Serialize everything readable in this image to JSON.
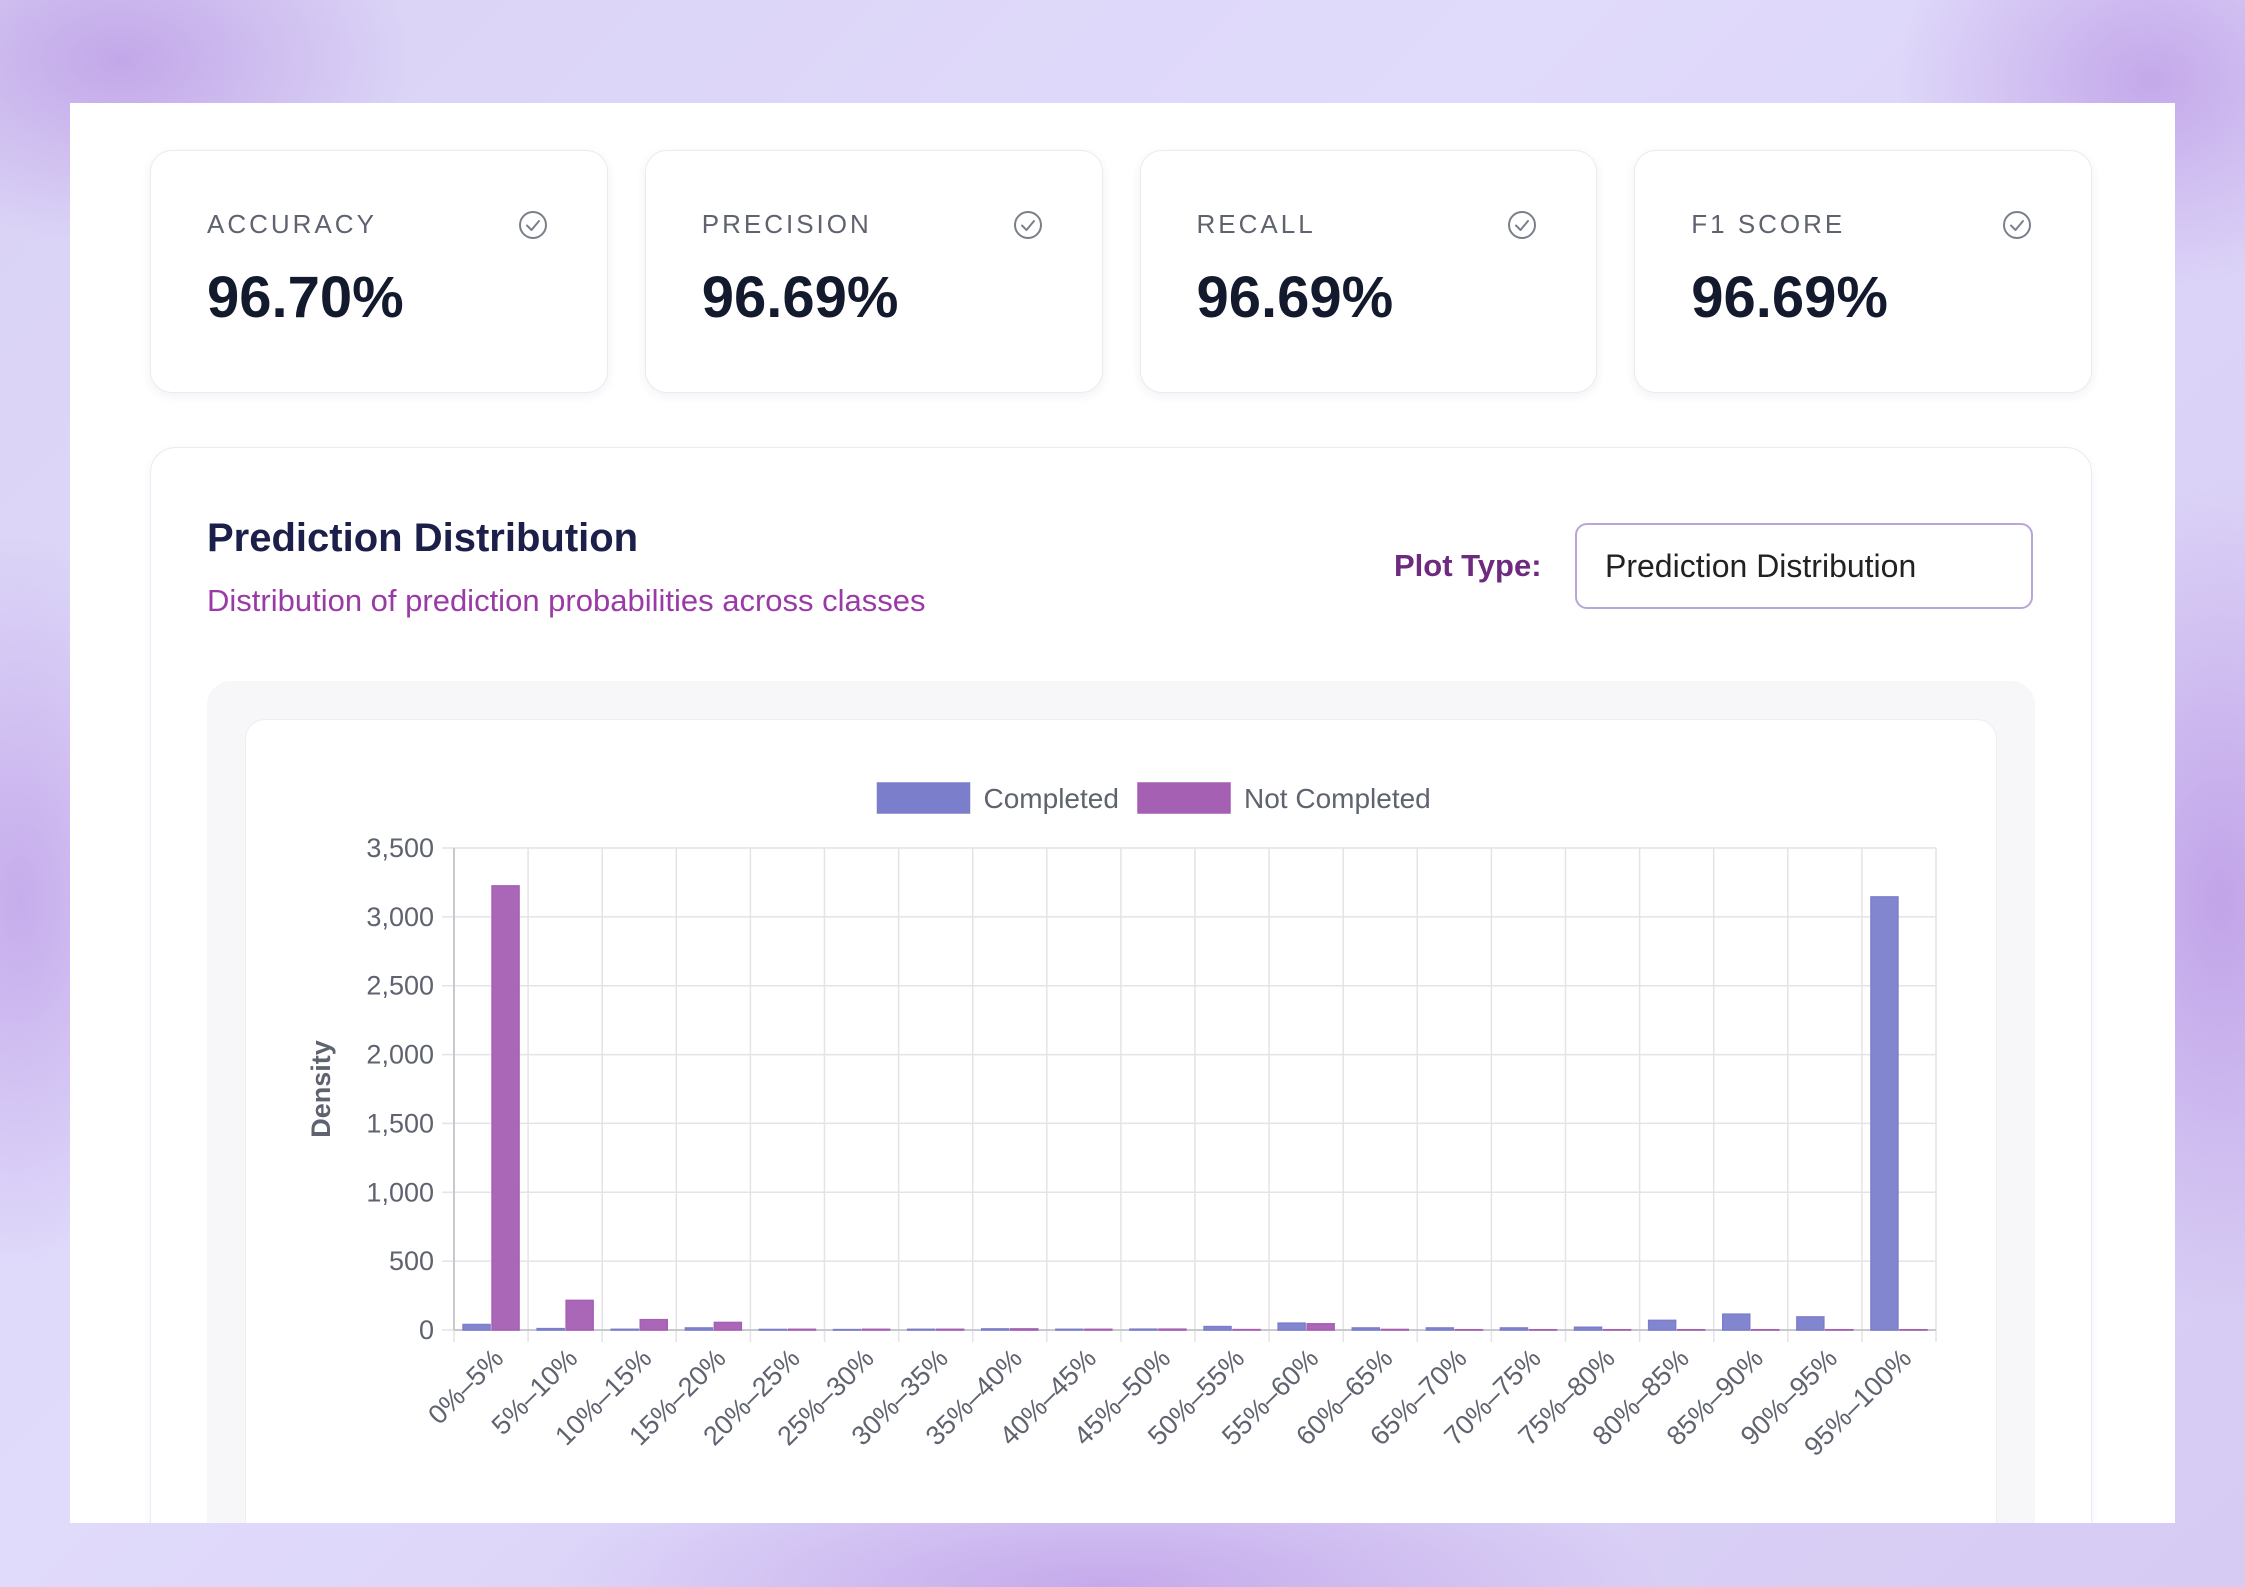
{
  "metrics": [
    {
      "label": "ACCURACY",
      "value": "96.70%",
      "icon": "check-circle-icon"
    },
    {
      "label": "PRECISION",
      "value": "96.69%",
      "icon": "check-circle-icon"
    },
    {
      "label": "RECALL",
      "value": "96.69%",
      "icon": "check-circle-icon"
    },
    {
      "label": "F1 SCORE",
      "value": "96.69%",
      "icon": "check-circle-icon"
    }
  ],
  "panel": {
    "title": "Prediction Distribution",
    "subtitle": "Distribution of prediction probabilities across classes",
    "plot_type_label": "Plot Type:",
    "plot_type_value": "Prediction Distribution"
  },
  "colors": {
    "completed": "#7b7fcb",
    "not_completed": "#a55fb3",
    "grid": "#e3e3e8",
    "axis_text": "#5f6370"
  },
  "chart_data": {
    "type": "bar",
    "title": "",
    "xlabel": "",
    "ylabel": "Density",
    "ylim": [
      0,
      3500
    ],
    "yticks": [
      0,
      500,
      1000,
      1500,
      2000,
      2500,
      3000,
      3500
    ],
    "ytick_labels": [
      "0",
      "500",
      "1,000",
      "1,500",
      "2,000",
      "2,500",
      "3,000",
      "3,500"
    ],
    "grid": true,
    "legend_position": "top-center",
    "categories": [
      "0%–5%",
      "5%–10%",
      "10%–15%",
      "15%–20%",
      "20%–25%",
      "25%–30%",
      "30%–35%",
      "35%–40%",
      "40%–45%",
      "45%–50%",
      "50%–55%",
      "55%–60%",
      "60%–65%",
      "65%–70%",
      "70%–75%",
      "75%–80%",
      "80%–85%",
      "85%–90%",
      "90%–95%",
      "95%–100%"
    ],
    "series": [
      {
        "name": "Completed",
        "color": "#7b7fcb",
        "values": [
          40,
          10,
          5,
          15,
          4,
          3,
          5,
          8,
          5,
          6,
          25,
          50,
          15,
          15,
          15,
          20,
          70,
          115,
          95,
          3145
        ]
      },
      {
        "name": "Not Completed",
        "color": "#a55fb3",
        "values": [
          3225,
          215,
          75,
          55,
          5,
          5,
          5,
          8,
          5,
          6,
          3,
          45,
          4,
          2,
          2,
          2,
          2,
          2,
          2,
          2
        ]
      }
    ]
  }
}
